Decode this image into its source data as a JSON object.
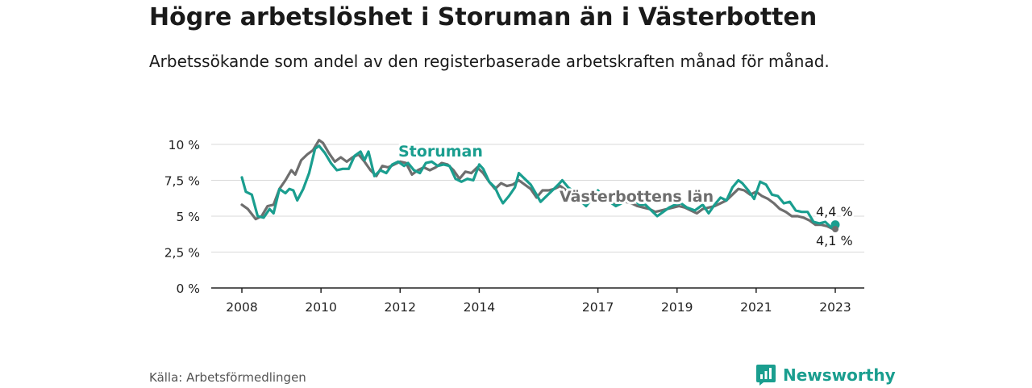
{
  "title": "Högre arbetslöshet i Storuman än i Västerbotten",
  "subtitle": "Arbetssökande som andel av den registerbaserade arbetskraften månad för månad.",
  "source": "Källa: Arbetsförmedlingen",
  "logo": {
    "text": "Newsworthy",
    "icon": "newsworthy-chart-icon"
  },
  "colors": {
    "storuman": "#1a9e8f",
    "vasterbotten": "#6e6e6e",
    "grid": "#d9d9d9",
    "axis": "#222222"
  },
  "chart_data": {
    "type": "line",
    "title": "Högre arbetslöshet i Storuman än i Västerbotten",
    "xlabel": "",
    "ylabel": "",
    "xlim": [
      2008,
      2023.5
    ],
    "ylim": [
      0,
      10
    ],
    "grid": true,
    "yticks": [
      0,
      2.5,
      5,
      7.5,
      10
    ],
    "ytick_labels": [
      "0 %",
      "2,5 %",
      "5 %",
      "7,5 %",
      "10 %"
    ],
    "xtick_labels": [
      "2008",
      "2010",
      "2012",
      "2014",
      "2017",
      "2019",
      "2021",
      "2023"
    ],
    "xtick_values": [
      2008,
      2010,
      2012,
      2014,
      2017,
      2019,
      2021,
      2023
    ],
    "series": [
      {
        "name": "Storuman",
        "label": "Storuman",
        "end_label": "4,4 %",
        "points": [
          [
            2008.0,
            7.7
          ],
          [
            2008.1,
            6.7
          ],
          [
            2008.25,
            6.5
          ],
          [
            2008.4,
            5.0
          ],
          [
            2008.55,
            4.9
          ],
          [
            2008.7,
            5.5
          ],
          [
            2008.8,
            5.2
          ],
          [
            2008.95,
            6.9
          ],
          [
            2009.1,
            6.6
          ],
          [
            2009.2,
            6.9
          ],
          [
            2009.3,
            6.8
          ],
          [
            2009.4,
            6.1
          ],
          [
            2009.55,
            6.9
          ],
          [
            2009.7,
            8.0
          ],
          [
            2009.85,
            9.7
          ],
          [
            2009.95,
            9.9
          ],
          [
            2010.1,
            9.4
          ],
          [
            2010.25,
            8.7
          ],
          [
            2010.4,
            8.2
          ],
          [
            2010.55,
            8.3
          ],
          [
            2010.7,
            8.3
          ],
          [
            2010.85,
            9.2
          ],
          [
            2011.0,
            9.5
          ],
          [
            2011.1,
            8.9
          ],
          [
            2011.2,
            9.5
          ],
          [
            2011.35,
            7.8
          ],
          [
            2011.5,
            8.2
          ],
          [
            2011.65,
            8.0
          ],
          [
            2011.8,
            8.6
          ],
          [
            2011.95,
            8.8
          ],
          [
            2012.1,
            8.5
          ],
          [
            2012.2,
            8.7
          ],
          [
            2012.35,
            8.2
          ],
          [
            2012.5,
            8.0
          ],
          [
            2012.65,
            8.7
          ],
          [
            2012.8,
            8.8
          ],
          [
            2012.95,
            8.5
          ],
          [
            2013.1,
            8.6
          ],
          [
            2013.25,
            8.5
          ],
          [
            2013.4,
            7.6
          ],
          [
            2013.55,
            7.4
          ],
          [
            2013.7,
            7.6
          ],
          [
            2013.85,
            7.5
          ],
          [
            2014.0,
            8.6
          ],
          [
            2014.1,
            8.3
          ],
          [
            2014.25,
            7.4
          ],
          [
            2014.4,
            7.0
          ],
          [
            2014.5,
            6.4
          ],
          [
            2014.6,
            5.9
          ],
          [
            2014.75,
            6.4
          ],
          [
            2014.9,
            7.0
          ],
          [
            2015.0,
            8.0
          ],
          [
            2015.15,
            7.6
          ],
          [
            2015.3,
            7.2
          ],
          [
            2015.45,
            6.5
          ],
          [
            2015.55,
            6.0
          ],
          [
            2015.7,
            6.4
          ],
          [
            2015.85,
            6.8
          ],
          [
            2016.0,
            7.2
          ],
          [
            2016.1,
            7.5
          ],
          [
            2016.25,
            7.0
          ],
          [
            2016.4,
            6.7
          ],
          [
            2016.55,
            6.1
          ],
          [
            2016.7,
            5.7
          ],
          [
            2016.85,
            6.2
          ],
          [
            2017.0,
            6.8
          ],
          [
            2017.15,
            6.3
          ],
          [
            2017.3,
            6.0
          ],
          [
            2017.45,
            5.7
          ],
          [
            2017.6,
            5.9
          ],
          [
            2017.75,
            6.3
          ],
          [
            2017.9,
            6.2
          ],
          [
            2018.05,
            5.8
          ],
          [
            2018.2,
            5.8
          ],
          [
            2018.35,
            5.4
          ],
          [
            2018.5,
            5.0
          ],
          [
            2018.65,
            5.3
          ],
          [
            2018.8,
            5.6
          ],
          [
            2018.95,
            5.8
          ],
          [
            2019.1,
            5.9
          ],
          [
            2019.25,
            5.6
          ],
          [
            2019.45,
            5.4
          ],
          [
            2019.65,
            5.8
          ],
          [
            2019.8,
            5.2
          ],
          [
            2019.95,
            5.8
          ],
          [
            2020.1,
            6.3
          ],
          [
            2020.25,
            6.1
          ],
          [
            2020.4,
            7.0
          ],
          [
            2020.55,
            7.5
          ],
          [
            2020.65,
            7.3
          ],
          [
            2020.8,
            6.8
          ],
          [
            2020.95,
            6.2
          ],
          [
            2021.1,
            7.4
          ],
          [
            2021.25,
            7.2
          ],
          [
            2021.4,
            6.5
          ],
          [
            2021.55,
            6.4
          ],
          [
            2021.7,
            5.9
          ],
          [
            2021.85,
            6.0
          ],
          [
            2022.0,
            5.4
          ],
          [
            2022.15,
            5.3
          ],
          [
            2022.3,
            5.3
          ],
          [
            2022.45,
            4.6
          ],
          [
            2022.6,
            4.5
          ],
          [
            2022.75,
            4.6
          ],
          [
            2022.9,
            4.2
          ],
          [
            2023.0,
            4.4
          ]
        ]
      },
      {
        "name": "Västerbottens län",
        "label": "Västerbottens län",
        "end_label": "4,1 %",
        "points": [
          [
            2008.0,
            5.8
          ],
          [
            2008.15,
            5.5
          ],
          [
            2008.35,
            4.8
          ],
          [
            2008.5,
            5.0
          ],
          [
            2008.65,
            5.7
          ],
          [
            2008.8,
            5.8
          ],
          [
            2008.95,
            6.9
          ],
          [
            2009.1,
            7.5
          ],
          [
            2009.25,
            8.2
          ],
          [
            2009.35,
            7.9
          ],
          [
            2009.5,
            8.9
          ],
          [
            2009.65,
            9.3
          ],
          [
            2009.8,
            9.6
          ],
          [
            2009.95,
            10.3
          ],
          [
            2010.05,
            10.1
          ],
          [
            2010.2,
            9.4
          ],
          [
            2010.35,
            8.8
          ],
          [
            2010.5,
            9.1
          ],
          [
            2010.65,
            8.8
          ],
          [
            2010.8,
            9.1
          ],
          [
            2010.95,
            9.3
          ],
          [
            2011.1,
            8.8
          ],
          [
            2011.25,
            8.2
          ],
          [
            2011.4,
            7.8
          ],
          [
            2011.55,
            8.5
          ],
          [
            2011.7,
            8.4
          ],
          [
            2011.85,
            8.6
          ],
          [
            2012.0,
            8.8
          ],
          [
            2012.15,
            8.7
          ],
          [
            2012.3,
            7.9
          ],
          [
            2012.45,
            8.2
          ],
          [
            2012.6,
            8.4
          ],
          [
            2012.75,
            8.2
          ],
          [
            2012.9,
            8.4
          ],
          [
            2013.05,
            8.7
          ],
          [
            2013.2,
            8.6
          ],
          [
            2013.35,
            8.2
          ],
          [
            2013.5,
            7.6
          ],
          [
            2013.65,
            8.1
          ],
          [
            2013.8,
            8.0
          ],
          [
            2013.95,
            8.4
          ],
          [
            2014.1,
            8.0
          ],
          [
            2014.25,
            7.4
          ],
          [
            2014.4,
            6.9
          ],
          [
            2014.55,
            7.3
          ],
          [
            2014.7,
            7.1
          ],
          [
            2014.85,
            7.2
          ],
          [
            2015.0,
            7.5
          ],
          [
            2015.15,
            7.2
          ],
          [
            2015.3,
            6.9
          ],
          [
            2015.45,
            6.3
          ],
          [
            2015.6,
            6.8
          ],
          [
            2015.75,
            6.8
          ],
          [
            2015.9,
            6.9
          ],
          [
            2016.05,
            7.1
          ],
          [
            2016.2,
            6.8
          ],
          [
            2016.35,
            6.5
          ],
          [
            2016.5,
            6.2
          ],
          [
            2016.65,
            6.2
          ],
          [
            2016.8,
            6.3
          ],
          [
            2016.95,
            6.4
          ],
          [
            2017.1,
            6.2
          ],
          [
            2017.25,
            6.0
          ],
          [
            2017.4,
            5.9
          ],
          [
            2017.55,
            5.9
          ],
          [
            2017.7,
            6.0
          ],
          [
            2017.85,
            5.9
          ],
          [
            2018.0,
            5.7
          ],
          [
            2018.15,
            5.6
          ],
          [
            2018.3,
            5.5
          ],
          [
            2018.45,
            5.3
          ],
          [
            2018.6,
            5.4
          ],
          [
            2018.75,
            5.5
          ],
          [
            2018.9,
            5.6
          ],
          [
            2019.05,
            5.7
          ],
          [
            2019.2,
            5.6
          ],
          [
            2019.35,
            5.4
          ],
          [
            2019.5,
            5.2
          ],
          [
            2019.65,
            5.5
          ],
          [
            2019.8,
            5.6
          ],
          [
            2019.95,
            5.7
          ],
          [
            2020.1,
            5.9
          ],
          [
            2020.25,
            6.1
          ],
          [
            2020.4,
            6.5
          ],
          [
            2020.55,
            6.9
          ],
          [
            2020.7,
            6.8
          ],
          [
            2020.85,
            6.5
          ],
          [
            2021.0,
            6.7
          ],
          [
            2021.15,
            6.4
          ],
          [
            2021.3,
            6.2
          ],
          [
            2021.45,
            5.9
          ],
          [
            2021.6,
            5.5
          ],
          [
            2021.75,
            5.3
          ],
          [
            2021.9,
            5.0
          ],
          [
            2022.05,
            5.0
          ],
          [
            2022.2,
            4.9
          ],
          [
            2022.35,
            4.7
          ],
          [
            2022.5,
            4.4
          ],
          [
            2022.65,
            4.4
          ],
          [
            2022.8,
            4.3
          ],
          [
            2022.95,
            4.1
          ],
          [
            2023.0,
            4.1
          ]
        ]
      }
    ]
  }
}
